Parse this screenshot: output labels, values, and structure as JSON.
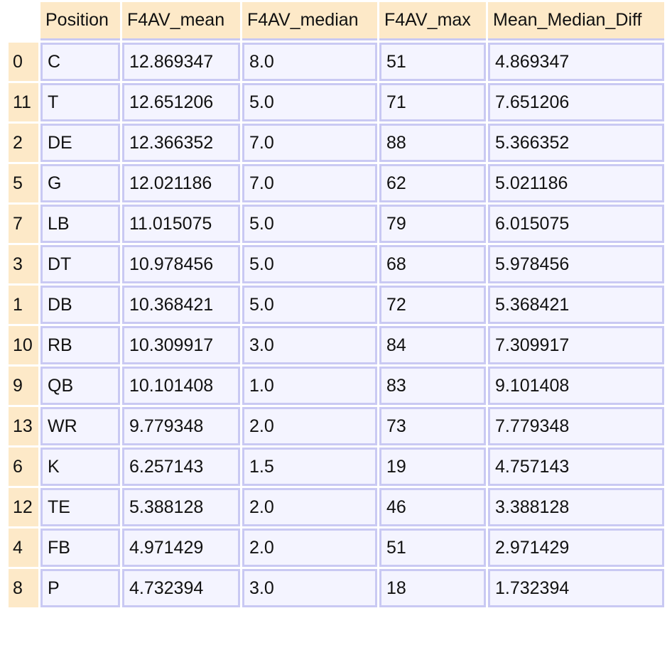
{
  "table": {
    "columns": [
      "Position",
      "F4AV_mean",
      "F4AV_median",
      "F4AV_max",
      "Mean_Median_Diff"
    ],
    "rows": [
      {
        "index": "0",
        "cells": [
          "C",
          "12.869347",
          "8.0",
          "51",
          "4.869347"
        ]
      },
      {
        "index": "11",
        "cells": [
          "T",
          "12.651206",
          "5.0",
          "71",
          "7.651206"
        ]
      },
      {
        "index": "2",
        "cells": [
          "DE",
          "12.366352",
          "7.0",
          "88",
          "5.366352"
        ]
      },
      {
        "index": "5",
        "cells": [
          "G",
          "12.021186",
          "7.0",
          "62",
          "5.021186"
        ]
      },
      {
        "index": "7",
        "cells": [
          "LB",
          "11.015075",
          "5.0",
          "79",
          "6.015075"
        ]
      },
      {
        "index": "3",
        "cells": [
          "DT",
          "10.978456",
          "5.0",
          "68",
          "5.978456"
        ]
      },
      {
        "index": "1",
        "cells": [
          "DB",
          "10.368421",
          "5.0",
          "72",
          "5.368421"
        ]
      },
      {
        "index": "10",
        "cells": [
          "RB",
          "10.309917",
          "3.0",
          "84",
          "7.309917"
        ]
      },
      {
        "index": "9",
        "cells": [
          "QB",
          "10.101408",
          "1.0",
          "83",
          "9.101408"
        ]
      },
      {
        "index": "13",
        "cells": [
          "WR",
          "9.779348",
          "2.0",
          "73",
          "7.779348"
        ]
      },
      {
        "index": "6",
        "cells": [
          "K",
          "6.257143",
          "1.5",
          "19",
          "4.757143"
        ]
      },
      {
        "index": "12",
        "cells": [
          "TE",
          "5.388128",
          "2.0",
          "46",
          "3.388128"
        ]
      },
      {
        "index": "4",
        "cells": [
          "FB",
          "4.971429",
          "2.0",
          "51",
          "2.971429"
        ]
      },
      {
        "index": "8",
        "cells": [
          "P",
          "4.732394",
          "3.0",
          "18",
          "1.732394"
        ]
      }
    ]
  },
  "colors": {
    "header_bg": "#fde9c8",
    "cell_bg": "#f4f4ff",
    "cell_border": "#c9c9f3"
  }
}
